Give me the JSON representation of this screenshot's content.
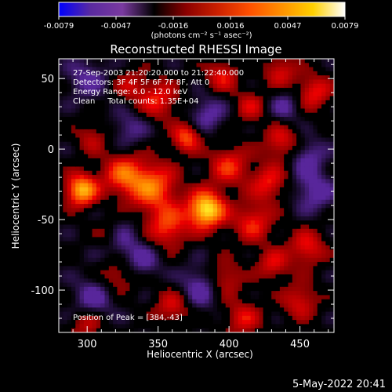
{
  "chart_data": {
    "type": "heatmap",
    "title": "Reconstructed RHESSI Image",
    "xlabel": "Heliocentric X (arcsec)",
    "ylabel": "Heliocentric Y (arcsec)",
    "xlim": [
      280,
      474
    ],
    "ylim": [
      -130,
      64
    ],
    "x_ticks": [
      300,
      350,
      400,
      450
    ],
    "y_ticks": [
      -100,
      -50,
      0,
      50
    ],
    "colorbar": {
      "ticks": [
        "-0.0079",
        "-0.0047",
        "-0.0016",
        "0.0016",
        "0.0047",
        "0.0079"
      ],
      "unit_label": "(photons cm⁻² s⁻¹ asec⁻²)",
      "range": [
        -0.0079,
        0.0079
      ],
      "colors": [
        "#0000ff",
        "#5a2aa0",
        "#7a3aa0",
        "#000000",
        "#8b0000",
        "#cc2000",
        "#ff5000",
        "#ff9000",
        "#ffd000",
        "#ffffff"
      ]
    },
    "annotations": [
      "27-Sep-2003 21:20:20.000 to 21:22:40.000",
      "Detectors: 3F 4F 5F 6F 7F 8F, Att 0",
      "Energy Range: 6.0 - 12.0 keV",
      "Clean     Total counts: 1.35E+04"
    ],
    "peak_label": "Position of Peak = [384,-43]",
    "peak": [
      384,
      -43
    ],
    "sources": [
      {
        "x": 384,
        "y": -43,
        "amp": 0.0079,
        "r": 9
      },
      {
        "x": 296,
        "y": -29,
        "amp": 0.0065,
        "r": 8
      },
      {
        "x": 346,
        "y": -27,
        "amp": 0.005,
        "r": 12
      },
      {
        "x": 325,
        "y": -18,
        "amp": 0.0042,
        "r": 10
      },
      {
        "x": 357,
        "y": -55,
        "amp": 0.004,
        "r": 10
      },
      {
        "x": 417,
        "y": -52,
        "amp": 0.0035,
        "r": 10
      },
      {
        "x": 428,
        "y": -24,
        "amp": 0.0034,
        "r": 9
      },
      {
        "x": 400,
        "y": -12,
        "amp": 0.0036,
        "r": 10
      },
      {
        "x": 437,
        "y": 5,
        "amp": 0.0032,
        "r": 9
      },
      {
        "x": 350,
        "y": 35,
        "amp": 0.0034,
        "r": 10
      },
      {
        "x": 370,
        "y": 8,
        "amp": 0.0044,
        "r": 7
      },
      {
        "x": 395,
        "y": 52,
        "amp": 0.0032,
        "r": 8
      },
      {
        "x": 460,
        "y": 40,
        "amp": 0.0034,
        "r": 9
      },
      {
        "x": 436,
        "y": 55,
        "amp": 0.003,
        "r": 8
      },
      {
        "x": 455,
        "y": -70,
        "amp": 0.0034,
        "r": 9
      },
      {
        "x": 431,
        "y": -82,
        "amp": 0.003,
        "r": 8
      },
      {
        "x": 397,
        "y": -92,
        "amp": 0.0028,
        "r": 9
      },
      {
        "x": 321,
        "y": -90,
        "amp": 0.0024,
        "r": 9
      },
      {
        "x": 450,
        "y": -108,
        "amp": 0.003,
        "r": 9
      },
      {
        "x": 360,
        "y": -112,
        "amp": 0.0028,
        "r": 9
      },
      {
        "x": 410,
        "y": -120,
        "amp": 0.003,
        "r": 9
      },
      {
        "x": 316,
        "y": -62,
        "amp": 0.0026,
        "r": 8
      },
      {
        "x": 303,
        "y": 8,
        "amp": 0.0022,
        "r": 8
      },
      {
        "x": 330,
        "y": 45,
        "amp": 0.0022,
        "r": 8
      },
      {
        "x": 415,
        "y": 30,
        "amp": 0.0026,
        "r": 8
      },
      {
        "x": 300,
        "y": -125,
        "amp": 0.0024,
        "r": 8
      },
      {
        "x": 322,
        "y": -65,
        "amp": -0.003,
        "r": 10
      },
      {
        "x": 305,
        "y": -105,
        "amp": -0.0025,
        "r": 10
      },
      {
        "x": 380,
        "y": -98,
        "amp": -0.0028,
        "r": 10
      },
      {
        "x": 460,
        "y": -30,
        "amp": -0.0026,
        "r": 10
      },
      {
        "x": 455,
        "y": -5,
        "amp": -0.0024,
        "r": 9
      },
      {
        "x": 300,
        "y": 50,
        "amp": -0.0022,
        "r": 10
      },
      {
        "x": 385,
        "y": 25,
        "amp": -0.0024,
        "r": 9
      },
      {
        "x": 440,
        "y": 30,
        "amp": -0.0022,
        "r": 8
      },
      {
        "x": 330,
        "y": 15,
        "amp": -0.002,
        "r": 9
      },
      {
        "x": 340,
        "y": -80,
        "amp": -0.0022,
        "r": 8
      }
    ]
  },
  "timestamp": "5-May-2022 20:41"
}
